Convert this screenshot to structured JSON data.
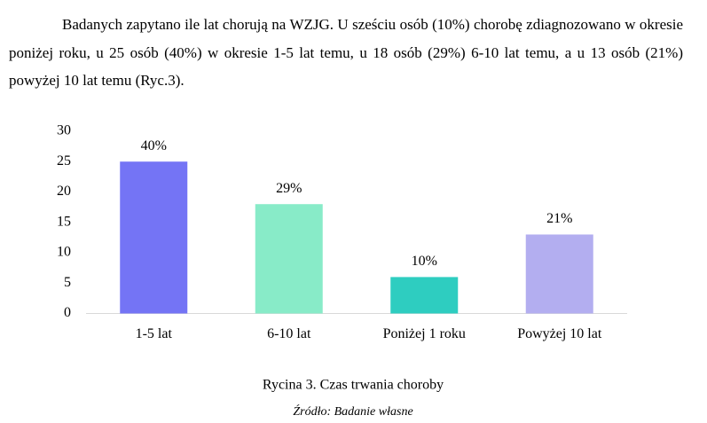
{
  "paragraph": "Badanych zapytano ile lat chorują na WZJG. U sześciu osób (10%) chorobę zdiagnozowano w okresie poniżej roku, u 25 osób (40%) w okresie 1-5 lat temu, u 18 osób (29%) 6-10 lat temu, a u 13 osób (21%) powyżej 10 lat temu (Ryc.3).",
  "chart_data": {
    "type": "bar",
    "categories": [
      "1-5 lat",
      "6-10 lat",
      "Poniżej 1 roku",
      "Powyżej 10 lat"
    ],
    "values": [
      25,
      18,
      6,
      13
    ],
    "value_labels": [
      "40%",
      "29%",
      "10%",
      "21%"
    ],
    "colors": [
      "#7474f5",
      "#88ebc8",
      "#2ecdc0",
      "#b3aef0"
    ],
    "ylim": [
      0,
      30
    ],
    "yticks": [
      0,
      5,
      10,
      15,
      20,
      25,
      30
    ],
    "grid": false
  },
  "caption": "Rycina 3. Czas trwania choroby",
  "source": "Źródło: Badanie własne"
}
